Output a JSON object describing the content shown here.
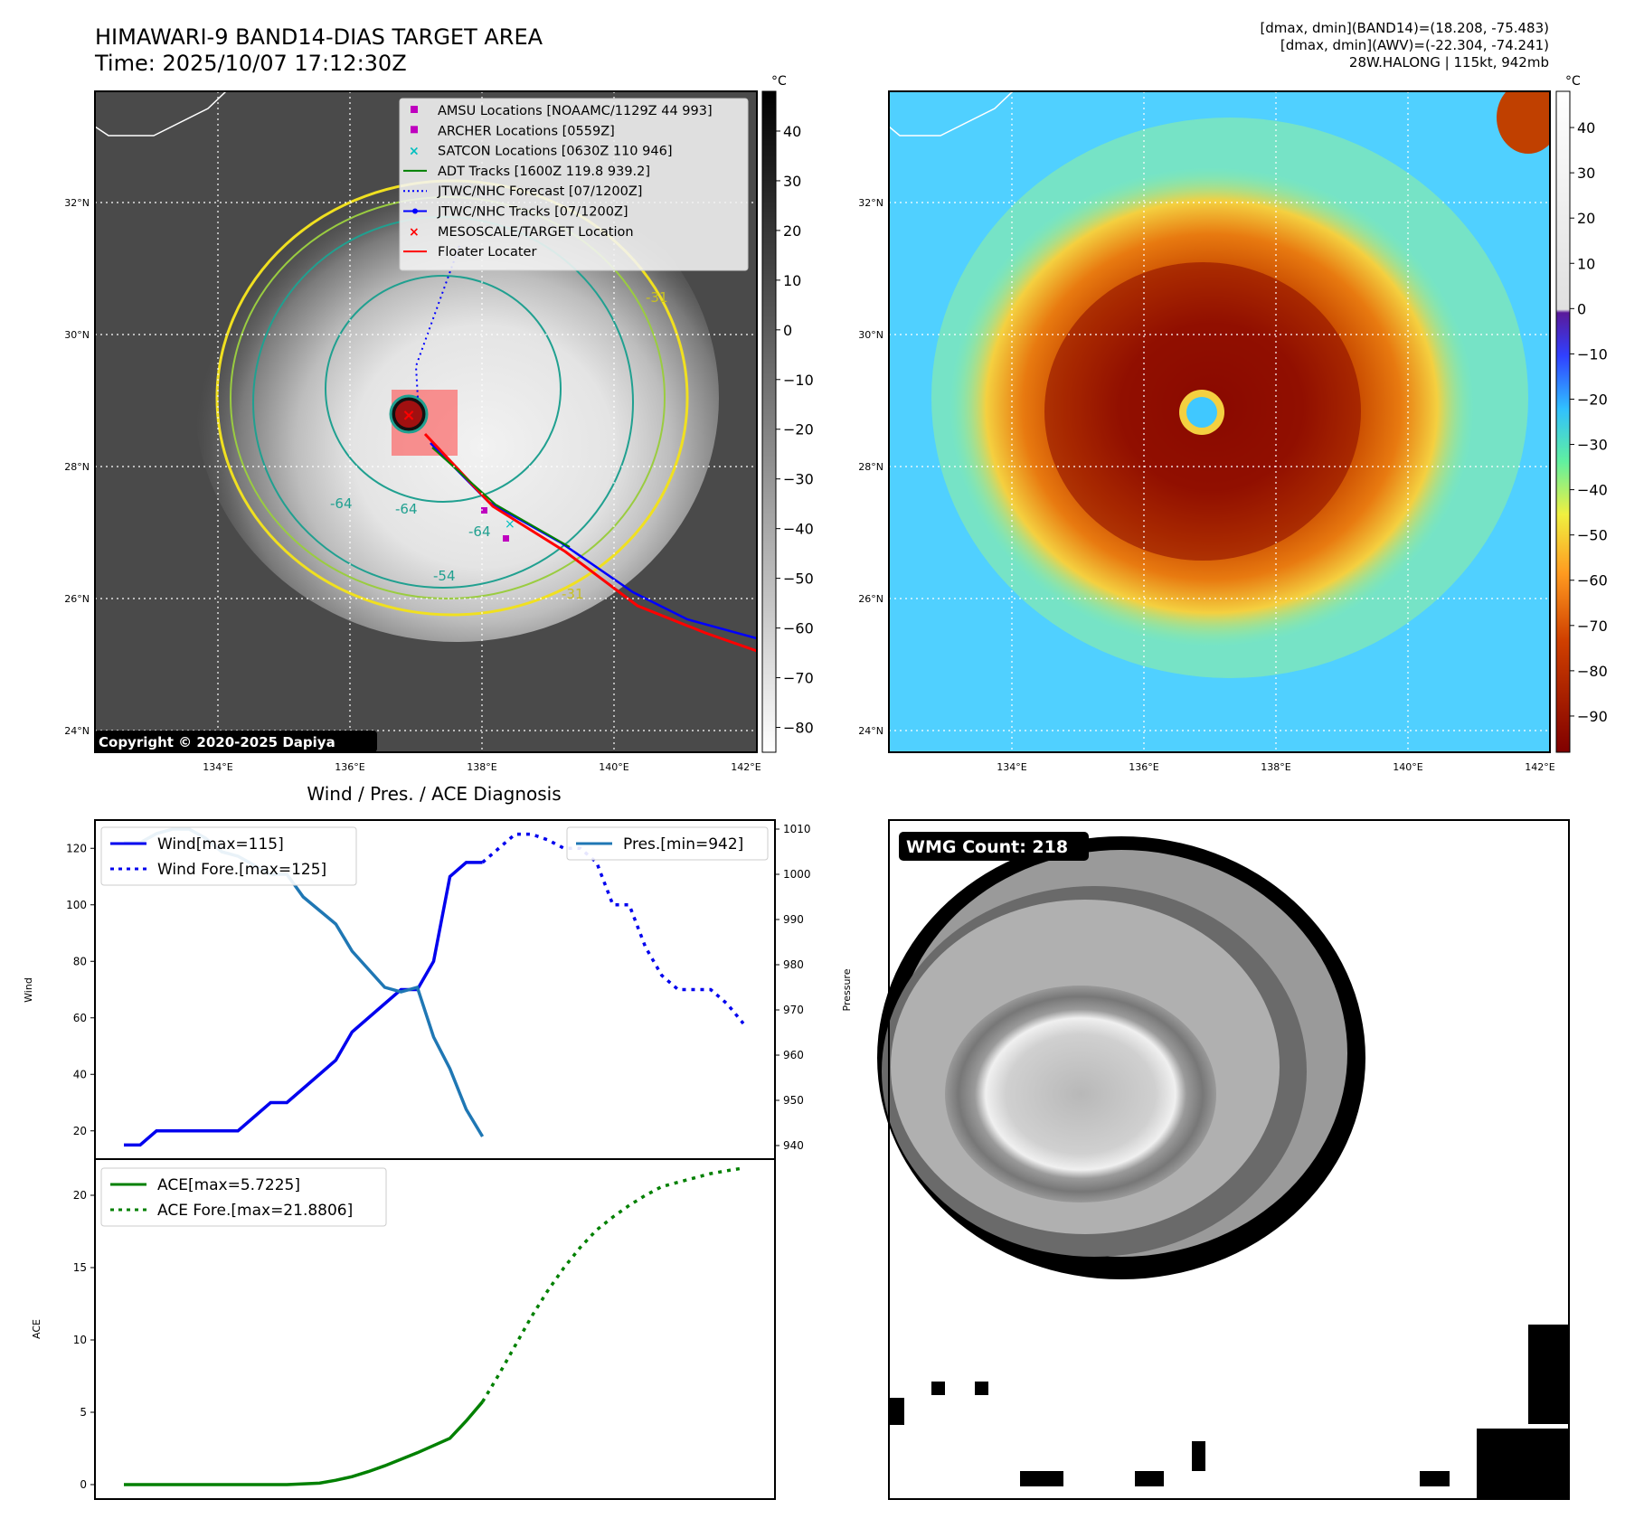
{
  "header": {
    "title_line1": "HIMAWARI-9 BAND14-DIAS TARGET AREA",
    "title_line2": "Time: 2025/10/07 17:12:30Z",
    "info_line1": "[dmax, dmin](BAND14)=(18.208, -75.483)",
    "info_line2": "[dmax, dmin](AWV)=(-22.304, -74.241)",
    "info_line3": "28W.HALONG | 115kt, 942mb"
  },
  "map_panel": {
    "lat_labels": [
      "32°N",
      "30°N",
      "28°N",
      "26°N",
      "24°N"
    ],
    "lon_labels": [
      "134°E",
      "136°E",
      "138°E",
      "140°E",
      "142°E"
    ],
    "copyright": "Copyright © 2020-2025 Dapiya",
    "contour_labels": [
      "-64",
      "-64",
      "-64",
      "-54",
      "-31",
      "-31"
    ],
    "legend": [
      {
        "label": "AMSU Locations [NOAAMC/1129Z 44 993]",
        "color": "#bf00bf",
        "marker": "square"
      },
      {
        "label": "ARCHER Locations [0559Z]",
        "color": "#bf00bf",
        "marker": "square"
      },
      {
        "label": "SATCON Locations [0630Z 110 946]",
        "color": "#00bfbf",
        "marker": "x"
      },
      {
        "label": "ADT Tracks [1600Z 119.8 939.2]",
        "color": "#008000",
        "marker": "line"
      },
      {
        "label": "JTWC/NHC Forecast [07/1200Z]",
        "color": "#0000ff",
        "marker": "dotted"
      },
      {
        "label": "JTWC/NHC Tracks [07/1200Z]",
        "color": "#0000ff",
        "marker": "line-dot"
      },
      {
        "label": "MESOSCALE/TARGET Location",
        "color": "#ff0000",
        "marker": "x"
      },
      {
        "label": "Floater Locater",
        "color": "#ff0000",
        "marker": "line"
      }
    ],
    "colorbar": {
      "unit": "°C",
      "ticks": [
        "40",
        "30",
        "20",
        "10",
        "0",
        "−10",
        "−20",
        "−30",
        "−40",
        "−50",
        "−60",
        "−70",
        "−80"
      ]
    }
  },
  "awv_panel": {
    "lat_labels": [
      "32°N",
      "30°N",
      "28°N",
      "26°N",
      "24°N"
    ],
    "lon_labels": [
      "134°E",
      "136°E",
      "138°E",
      "140°E",
      "142°E"
    ],
    "colorbar": {
      "unit": "°C",
      "ticks": [
        "40",
        "30",
        "20",
        "10",
        "0",
        "−10",
        "−20",
        "−30",
        "−40",
        "−50",
        "−60",
        "−70",
        "−80",
        "−90"
      ]
    }
  },
  "wmg_panel": {
    "label": "WMG Count: 218"
  },
  "chart_data": [
    {
      "type": "line",
      "title": "Wind / Pres. / ACE Diagnosis",
      "ylabel": "Wind",
      "ylabel_right": "Pressure",
      "ylim": [
        10,
        130
      ],
      "ylim_right": [
        937,
        1012
      ],
      "yticks": [
        20,
        40,
        60,
        80,
        100,
        120
      ],
      "yticks_right": [
        940,
        950,
        960,
        970,
        980,
        990,
        1000,
        1010
      ],
      "x": [
        0,
        1,
        2,
        3,
        4,
        5,
        6,
        7,
        8,
        9,
        10,
        11,
        12,
        13,
        14,
        15,
        16,
        17,
        18,
        19,
        20,
        21,
        22,
        23,
        24,
        25,
        26,
        27,
        28,
        29,
        30,
        31,
        32,
        33,
        34,
        35,
        36,
        37,
        38
      ],
      "series": [
        {
          "name": "Wind[max=115]",
          "color": "#0000ee",
          "style": "solid",
          "x": [
            0,
            1,
            2,
            3,
            4,
            5,
            6,
            7,
            8,
            9,
            10,
            11,
            12,
            13,
            14,
            15,
            16,
            17,
            18,
            19,
            20,
            21,
            22
          ],
          "values": [
            15,
            15,
            20,
            20,
            20,
            20,
            20,
            20,
            25,
            30,
            30,
            35,
            40,
            45,
            55,
            60,
            65,
            70,
            70,
            80,
            110,
            115,
            115
          ]
        },
        {
          "name": "Wind Fore.[max=125]",
          "color": "#0000ee",
          "style": "dotted",
          "x": [
            22,
            23,
            24,
            25,
            26,
            27,
            28,
            29,
            30,
            31,
            32,
            33,
            34,
            35,
            36,
            37,
            38
          ],
          "values": [
            115,
            120,
            125,
            125,
            123,
            120,
            120,
            115,
            100,
            100,
            85,
            75,
            70,
            70,
            70,
            65,
            58
          ]
        },
        {
          "name": "Pres.[min=942]",
          "color": "#1f77b4",
          "style": "solid",
          "axis": "right",
          "x": [
            0,
            1,
            2,
            3,
            4,
            5,
            6,
            7,
            8,
            9,
            10,
            11,
            12,
            13,
            14,
            15,
            16,
            17,
            18,
            19,
            20,
            21,
            22
          ],
          "values": [
            1007,
            1007,
            1009,
            1010,
            1010,
            1008,
            1005,
            1004,
            1002,
            1000,
            1000,
            995,
            992,
            989,
            983,
            979,
            975,
            974,
            975,
            964,
            957,
            948,
            942
          ]
        }
      ],
      "legend_left": [
        "Wind[max=115]",
        "Wind Fore.[max=125]"
      ],
      "legend_right": [
        "Pres.[min=942]"
      ]
    },
    {
      "type": "line",
      "ylabel": "ACE",
      "ylim": [
        -1,
        22.5
      ],
      "yticks": [
        0,
        5,
        10,
        15,
        20
      ],
      "series": [
        {
          "name": "ACE[max=5.7225]",
          "color": "#008000",
          "style": "solid",
          "x": [
            0,
            2,
            4,
            6,
            8,
            10,
            12,
            13,
            14,
            15,
            16,
            17,
            18,
            19,
            20,
            21,
            22
          ],
          "values": [
            0,
            0,
            0,
            0,
            0,
            0,
            0.1,
            0.3,
            0.55,
            0.9,
            1.3,
            1.75,
            2.2,
            2.7,
            3.2,
            4.4,
            5.7225
          ]
        },
        {
          "name": "ACE Fore.[max=21.8806]",
          "color": "#008000",
          "style": "dotted",
          "x": [
            22,
            23,
            24,
            25,
            26,
            27,
            28,
            29,
            30,
            31,
            32,
            33,
            34,
            35,
            36,
            37,
            38
          ],
          "values": [
            5.7225,
            7.6,
            9.6,
            11.6,
            13.4,
            15,
            16.4,
            17.6,
            18.5,
            19.3,
            20,
            20.6,
            20.9,
            21.2,
            21.5,
            21.7,
            21.8806
          ]
        }
      ]
    }
  ]
}
